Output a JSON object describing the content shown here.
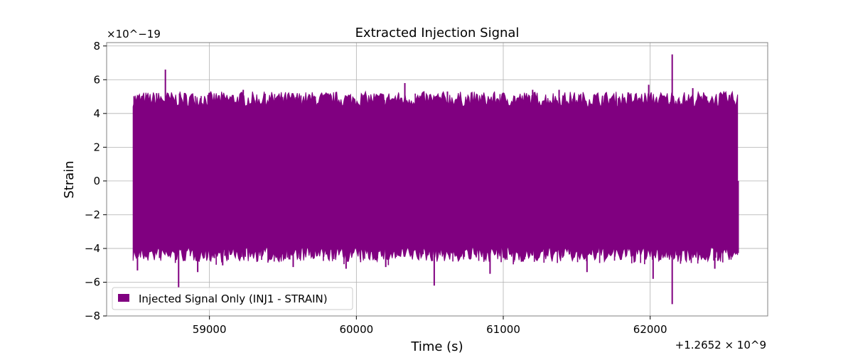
{
  "chart_data": {
    "type": "line",
    "title": "Extracted Injection Signal",
    "xlabel": "Time (s)",
    "ylabel": "Strain",
    "x_offset_label": "+1.2652 × 10^9",
    "y_scale_label": "×10^−19",
    "xlim": [
      58300,
      62800
    ],
    "ylim": [
      -8,
      8.2
    ],
    "x_ticks": [
      59000,
      60000,
      61000,
      62000
    ],
    "x_tick_labels": [
      "59000",
      "60000",
      "61000",
      "62000"
    ],
    "y_ticks": [
      -8,
      -6,
      -4,
      -2,
      0,
      2,
      4,
      6,
      8
    ],
    "y_tick_labels": [
      "−8",
      "−6",
      "−4",
      "−2",
      "0",
      "2",
      "4",
      "6",
      "8"
    ],
    "grid": true,
    "legend_position": "lower-left",
    "series": [
      {
        "name": "Injected Signal Only (INJ1 - STRAIN)",
        "color": "#800080",
        "x_range": [
          58480,
          62600
        ],
        "typical_range": [
          -4,
          4.5
        ],
        "peaks": [
          {
            "x": 58540,
            "y": 4.9
          },
          {
            "x": 58640,
            "y": 5.2
          },
          {
            "x": 58700,
            "y": 6.6
          },
          {
            "x": 58990,
            "y": 5.1
          },
          {
            "x": 59230,
            "y": 5.4
          },
          {
            "x": 59720,
            "y": 5.0
          },
          {
            "x": 60050,
            "y": 5.1
          },
          {
            "x": 60330,
            "y": 5.8
          },
          {
            "x": 60620,
            "y": 5.3
          },
          {
            "x": 61200,
            "y": 5.4
          },
          {
            "x": 61380,
            "y": 5.4
          },
          {
            "x": 61990,
            "y": 5.7
          },
          {
            "x": 62150,
            "y": 7.5
          },
          {
            "x": 62290,
            "y": 5.5
          },
          {
            "x": 62540,
            "y": 5.1
          }
        ],
        "troughs": [
          {
            "x": 58510,
            "y": -5.3
          },
          {
            "x": 58790,
            "y": -6.3
          },
          {
            "x": 58920,
            "y": -5.4
          },
          {
            "x": 59090,
            "y": -5.0
          },
          {
            "x": 59570,
            "y": -5.1
          },
          {
            "x": 59930,
            "y": -5.2
          },
          {
            "x": 60200,
            "y": -5.1
          },
          {
            "x": 60530,
            "y": -6.2
          },
          {
            "x": 60910,
            "y": -5.5
          },
          {
            "x": 61570,
            "y": -5.4
          },
          {
            "x": 62020,
            "y": -5.8
          },
          {
            "x": 62150,
            "y": -7.3
          },
          {
            "x": 62440,
            "y": -5.2
          }
        ]
      }
    ]
  }
}
